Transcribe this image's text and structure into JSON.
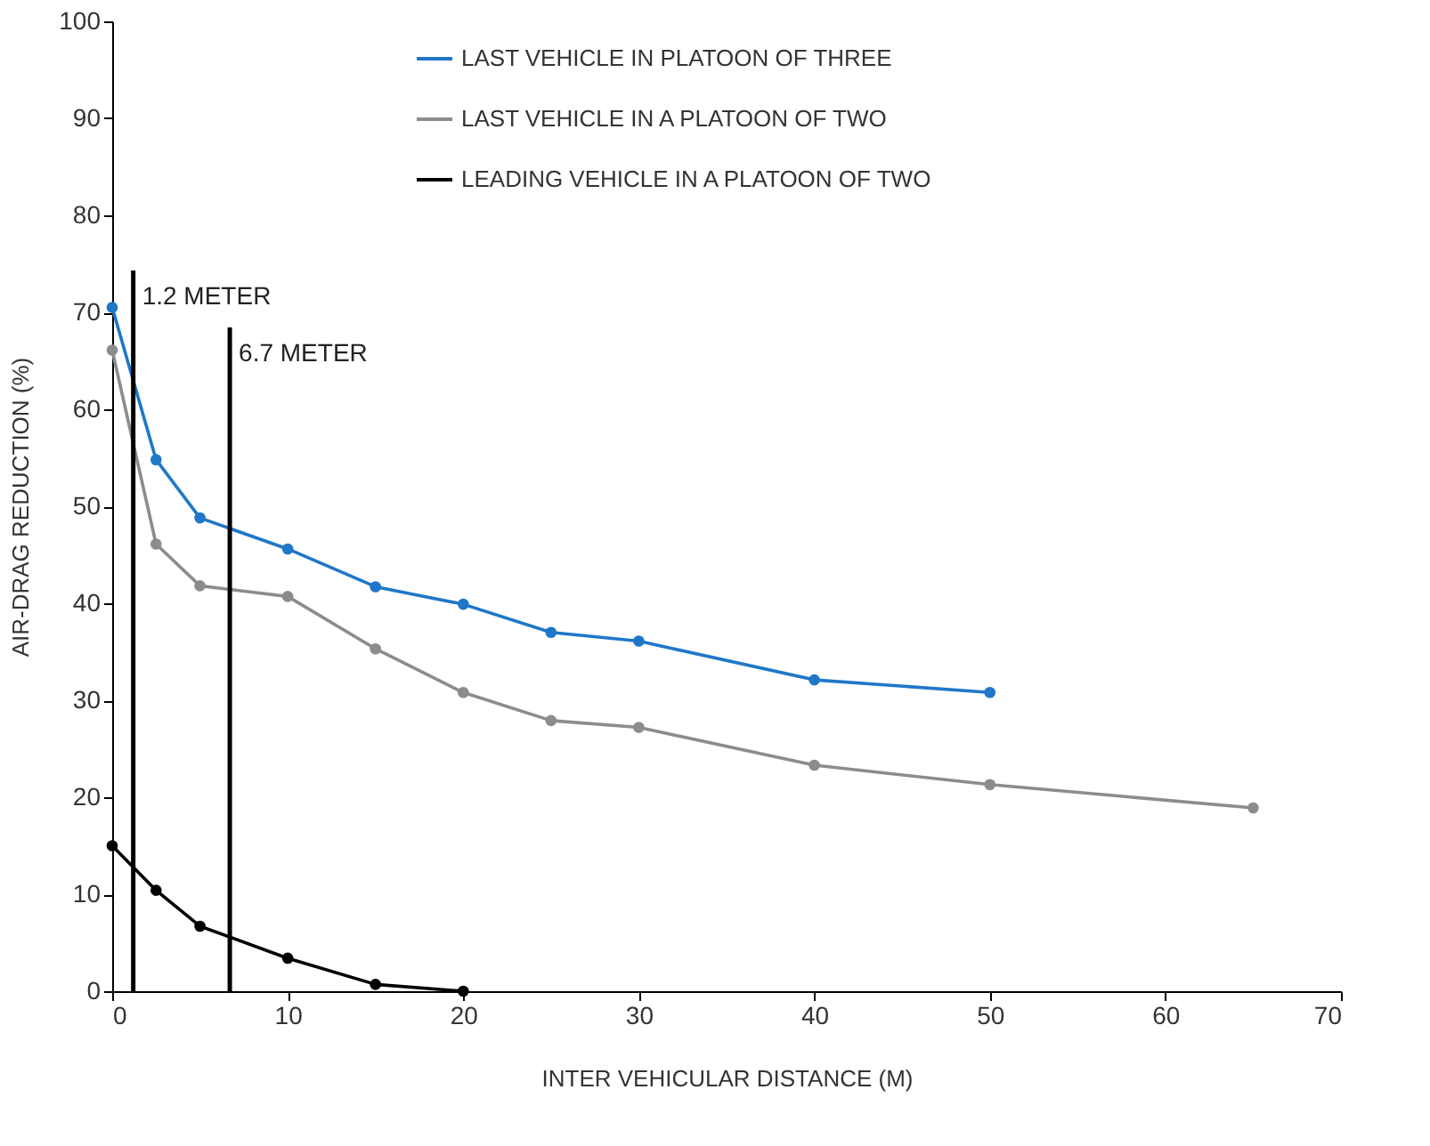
{
  "chart_data": {
    "type": "line",
    "xlabel": "INTER VEHICULAR DISTANCE (M)",
    "ylabel": "AIR-DRAG REDUCTION (%)",
    "xlim": [
      0,
      70
    ],
    "ylim": [
      0,
      100
    ],
    "xticks": [
      0,
      10,
      20,
      30,
      40,
      50,
      60,
      70
    ],
    "yticks": [
      0,
      10,
      20,
      30,
      40,
      50,
      60,
      70,
      80,
      90,
      100
    ],
    "grid": false,
    "legend": "top right",
    "marker": "circle",
    "line_style": "solid",
    "series": [
      {
        "name": "LAST VEHICLE IN PLATOON OF THREE",
        "color": "#1f77c8",
        "x": [
          0,
          2.5,
          5,
          10,
          15,
          20,
          25,
          30,
          40,
          50
        ],
        "values": [
          70.5,
          54.8,
          48.8,
          45.6,
          41.7,
          39.9,
          37.0,
          36.1,
          32.1,
          30.8
        ]
      },
      {
        "name": "LAST VEHICLE IN A PLATOON OF TWO",
        "color": "#8c8c8c",
        "x": [
          0,
          2.5,
          5,
          10,
          15,
          20,
          25,
          30,
          40,
          50,
          65
        ],
        "values": [
          66.1,
          46.1,
          41.8,
          40.7,
          35.3,
          30.8,
          27.9,
          27.2,
          23.3,
          21.3,
          18.9
        ]
      },
      {
        "name": "LEADING VEHICLE IN A PLATOON OF TWO",
        "color": "#000000",
        "x": [
          0,
          2.5,
          5,
          10,
          15,
          20
        ],
        "values": [
          15.0,
          10.4,
          6.7,
          3.4,
          0.7,
          0
        ]
      }
    ],
    "ref_lines": [
      {
        "axis": "x",
        "value": 1.2,
        "label": "1.2 METER",
        "color": "#000000"
      },
      {
        "axis": "x",
        "value": 6.7,
        "label": "6.7 METER",
        "color": "#000000"
      }
    ]
  }
}
